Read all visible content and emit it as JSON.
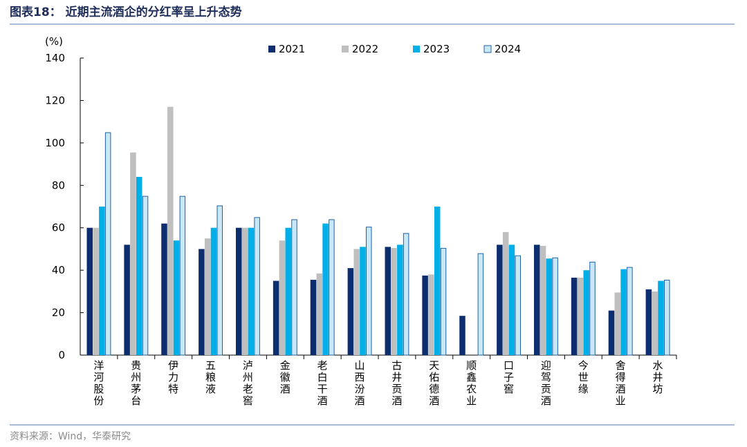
{
  "figure_title": "图表18：  近期主流酒企的分红率呈上升态势",
  "source": "资料来源：Wind，华泰研究",
  "colors": {
    "title": "#1f2d5a",
    "rule": "#a9bcd6",
    "source": "#8a8a8a"
  },
  "chart_data": {
    "type": "bar",
    "unit_label": "(%)",
    "ylim": [
      0,
      140
    ],
    "yticks": [
      0,
      20,
      40,
      60,
      80,
      100,
      120,
      140
    ],
    "grid": false,
    "legend_position": "top-center",
    "categories": [
      "洋河股份",
      "贵州茅台",
      "伊力特",
      "五粮液",
      "泸州老窖",
      "金徽酒",
      "老白干酒",
      "山西汾酒",
      "古井贡酒",
      "天佑德酒",
      "顺鑫农业",
      "口子窖",
      "迎驾贡酒",
      "今世缘",
      "舍得酒业",
      "水井坊"
    ],
    "series": [
      {
        "name": "2021",
        "color": "#0d2e6e",
        "border": "#0d2e6e",
        "values": [
          60,
          52,
          62,
          50,
          60,
          35,
          35.5,
          41,
          51,
          37.5,
          18.5,
          52,
          52,
          36.5,
          21,
          31
        ]
      },
      {
        "name": "2022",
        "color": "#bfbfbf",
        "border": "#bfbfbf",
        "values": [
          60,
          95.5,
          117,
          55,
          60,
          54,
          38.5,
          50,
          50.5,
          38,
          null,
          58,
          51.5,
          36.5,
          29.5,
          30
        ]
      },
      {
        "name": "2023",
        "color": "#00aee8",
        "border": "#00aee8",
        "values": [
          70,
          84,
          54,
          60,
          60,
          60,
          62,
          51,
          52,
          70,
          null,
          52,
          45.5,
          40,
          40.5,
          35
        ]
      },
      {
        "name": "2024",
        "color": "#c8e8f8",
        "border": "#1f5fa8",
        "values": [
          105,
          75,
          75,
          70.5,
          65,
          64,
          64,
          60.5,
          57.5,
          50.5,
          48,
          47,
          46,
          44,
          41.5,
          35.5
        ]
      }
    ]
  }
}
